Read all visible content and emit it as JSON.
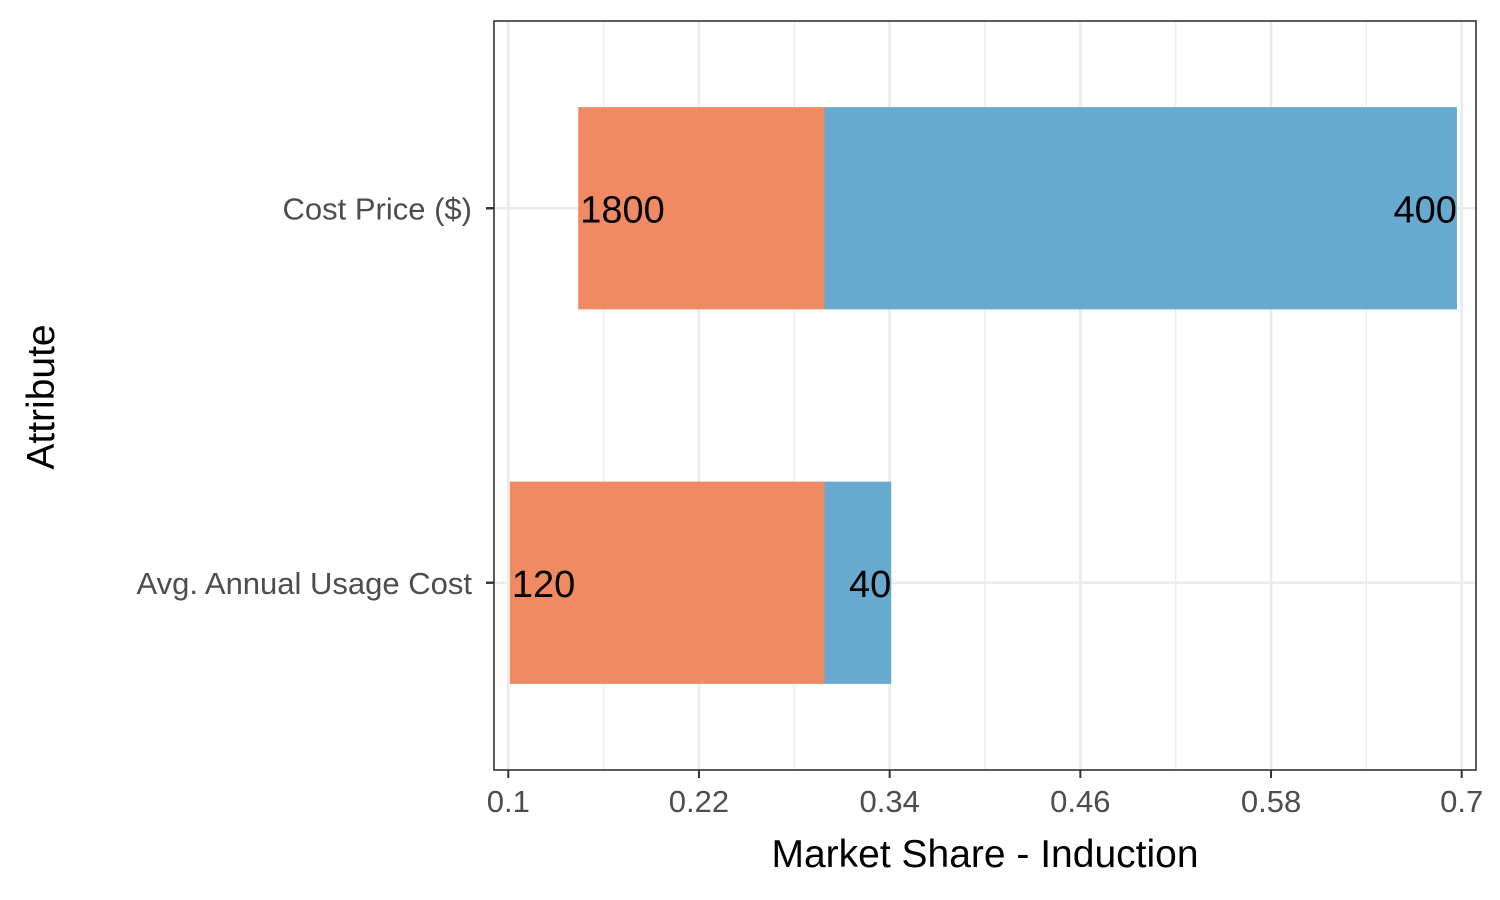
{
  "chart_data": {
    "type": "bar",
    "orientation": "horizontal",
    "xlabel": "Market Share - Induction",
    "ylabel": "Attribute",
    "xlim": [
      0.091,
      0.709
    ],
    "xticks": [
      0.1,
      0.22,
      0.34,
      0.46,
      0.58,
      0.7
    ],
    "xtick_labels": [
      "0.1",
      "0.22",
      "0.34",
      "0.46",
      "0.58",
      "0.7"
    ],
    "baseline": 0.299,
    "grid": true,
    "legend": "none",
    "categories": [
      "Cost Price ($)",
      "Avg. Annual Usage Cost"
    ],
    "bars": [
      {
        "category": "Cost Price ($)",
        "low": {
          "value": 0.144,
          "label": "1800",
          "color": "#ef8a62"
        },
        "high": {
          "value": 0.697,
          "label": "400",
          "color": "#67a9cf"
        }
      },
      {
        "category": "Avg. Annual Usage Cost",
        "low": {
          "value": 0.101,
          "label": "120",
          "color": "#ef8a62"
        },
        "high": {
          "value": 0.341,
          "label": "40",
          "color": "#67a9cf"
        }
      }
    ]
  }
}
